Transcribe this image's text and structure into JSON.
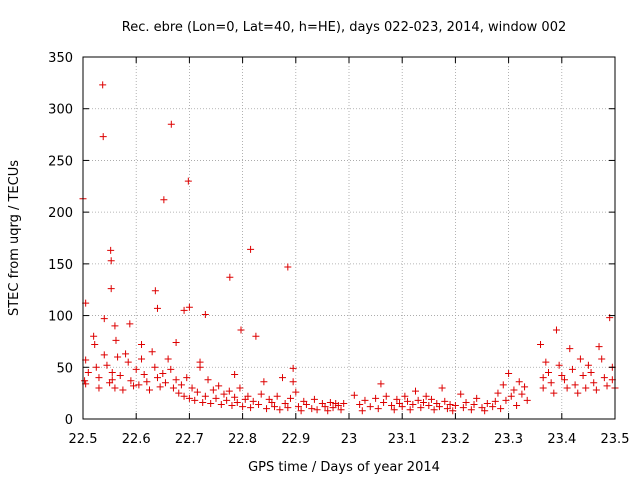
{
  "chart_data": {
    "type": "scatter",
    "title": "Rec. ebre (Lon=0, Lat=40, h=HE), days 022-023, 2014, window 002",
    "xlabel": "GPS time / Days of year 2014",
    "ylabel": "STEC from uqrg / TECUs",
    "xlim": [
      22.5,
      23.5
    ],
    "ylim": [
      0,
      350
    ],
    "xticks": [
      22.5,
      22.6,
      22.7,
      22.8,
      22.9,
      23.0,
      23.1,
      23.2,
      23.3,
      23.4,
      23.5
    ],
    "xtick_labels": [
      "22.5",
      "22.6",
      "22.7",
      "22.8",
      "22.9",
      "23",
      "23.1",
      "23.2",
      "23.3",
      "23.4",
      "23.5"
    ],
    "yticks": [
      0,
      50,
      100,
      150,
      200,
      250,
      300,
      350
    ],
    "ytick_labels": [
      "0",
      "50",
      "100",
      "150",
      "200",
      "250",
      "300",
      "350"
    ],
    "marker": "+",
    "color": "#dd0000",
    "grid": true,
    "series": [
      {
        "name": "STEC",
        "points": [
          [
            22.5,
            213
          ],
          [
            22.505,
            112
          ],
          [
            22.537,
            323
          ],
          [
            22.538,
            273
          ],
          [
            22.54,
            97
          ],
          [
            22.552,
            163
          ],
          [
            22.553,
            153
          ],
          [
            22.553,
            126
          ],
          [
            22.56,
            90
          ],
          [
            22.562,
            76
          ],
          [
            22.588,
            92
          ],
          [
            22.636,
            124
          ],
          [
            22.64,
            107
          ],
          [
            22.652,
            212
          ],
          [
            22.666,
            285
          ],
          [
            22.675,
            74
          ],
          [
            22.69,
            105
          ],
          [
            22.698,
            230
          ],
          [
            22.7,
            108
          ],
          [
            22.73,
            101
          ],
          [
            22.776,
            137
          ],
          [
            22.785,
            43
          ],
          [
            22.797,
            86
          ],
          [
            22.815,
            164
          ],
          [
            22.825,
            80
          ],
          [
            22.885,
            147
          ],
          [
            22.895,
            49
          ],
          [
            22.505,
            57
          ],
          [
            22.503,
            37
          ],
          [
            22.505,
            34
          ],
          [
            22.51,
            45
          ],
          [
            22.52,
            80
          ],
          [
            22.522,
            72
          ],
          [
            22.525,
            50
          ],
          [
            22.53,
            40
          ],
          [
            22.53,
            30
          ],
          [
            22.54,
            62
          ],
          [
            22.545,
            52
          ],
          [
            22.55,
            35
          ],
          [
            22.555,
            45
          ],
          [
            22.555,
            38
          ],
          [
            22.56,
            30
          ],
          [
            22.565,
            60
          ],
          [
            22.57,
            42
          ],
          [
            22.575,
            28
          ],
          [
            22.58,
            63
          ],
          [
            22.585,
            55
          ],
          [
            22.59,
            37
          ],
          [
            22.595,
            32
          ],
          [
            22.6,
            48
          ],
          [
            22.605,
            33
          ],
          [
            22.61,
            72
          ],
          [
            22.61,
            58
          ],
          [
            22.615,
            43
          ],
          [
            22.62,
            36
          ],
          [
            22.625,
            28
          ],
          [
            22.63,
            65
          ],
          [
            22.635,
            50
          ],
          [
            22.64,
            40
          ],
          [
            22.645,
            31
          ],
          [
            22.65,
            44
          ],
          [
            22.655,
            35
          ],
          [
            22.66,
            58
          ],
          [
            22.665,
            48
          ],
          [
            22.67,
            30
          ],
          [
            22.675,
            38
          ],
          [
            22.68,
            25
          ],
          [
            22.685,
            33
          ],
          [
            22.69,
            22
          ],
          [
            22.695,
            40
          ],
          [
            22.7,
            20
          ],
          [
            22.705,
            30
          ],
          [
            22.71,
            18
          ],
          [
            22.715,
            26
          ],
          [
            22.72,
            55
          ],
          [
            22.72,
            50
          ],
          [
            22.725,
            16
          ],
          [
            22.73,
            22
          ],
          [
            22.735,
            38
          ],
          [
            22.74,
            15
          ],
          [
            22.745,
            28
          ],
          [
            22.75,
            20
          ],
          [
            22.755,
            32
          ],
          [
            22.76,
            14
          ],
          [
            22.765,
            24
          ],
          [
            22.77,
            18
          ],
          [
            22.775,
            27
          ],
          [
            22.78,
            13
          ],
          [
            22.785,
            21
          ],
          [
            22.79,
            16
          ],
          [
            22.795,
            30
          ],
          [
            22.8,
            12
          ],
          [
            22.805,
            19
          ],
          [
            22.81,
            22
          ],
          [
            22.815,
            11
          ],
          [
            22.82,
            17
          ],
          [
            22.83,
            14
          ],
          [
            22.835,
            24
          ],
          [
            22.84,
            36
          ],
          [
            22.845,
            10
          ],
          [
            22.85,
            19
          ],
          [
            22.855,
            16
          ],
          [
            22.86,
            12
          ],
          [
            22.865,
            22
          ],
          [
            22.87,
            9
          ],
          [
            22.875,
            40
          ],
          [
            22.88,
            15
          ],
          [
            22.885,
            11
          ],
          [
            22.89,
            20
          ],
          [
            22.895,
            36
          ],
          [
            22.9,
            26
          ],
          [
            22.905,
            12
          ],
          [
            22.91,
            8
          ],
          [
            22.915,
            17
          ],
          [
            22.92,
            14
          ],
          [
            22.93,
            10
          ],
          [
            22.935,
            19
          ],
          [
            22.94,
            9
          ],
          [
            22.95,
            15
          ],
          [
            22.955,
            12
          ],
          [
            22.96,
            8
          ],
          [
            22.965,
            16
          ],
          [
            22.97,
            11
          ],
          [
            22.975,
            15
          ],
          [
            22.98,
            13
          ],
          [
            22.985,
            9
          ],
          [
            22.99,
            15
          ],
          [
            23.01,
            23
          ],
          [
            23.02,
            14
          ],
          [
            23.025,
            8
          ],
          [
            23.03,
            18
          ],
          [
            23.04,
            12
          ],
          [
            23.05,
            20
          ],
          [
            23.055,
            10
          ],
          [
            23.06,
            34
          ],
          [
            23.065,
            16
          ],
          [
            23.07,
            22
          ],
          [
            23.08,
            13
          ],
          [
            23.085,
            9
          ],
          [
            23.09,
            19
          ],
          [
            23.095,
            15
          ],
          [
            23.1,
            12
          ],
          [
            23.105,
            22
          ],
          [
            23.11,
            17
          ],
          [
            23.115,
            9
          ],
          [
            23.12,
            14
          ],
          [
            23.125,
            27
          ],
          [
            23.13,
            18
          ],
          [
            23.135,
            11
          ],
          [
            23.14,
            16
          ],
          [
            23.145,
            22
          ],
          [
            23.15,
            13
          ],
          [
            23.155,
            19
          ],
          [
            23.16,
            9
          ],
          [
            23.165,
            15
          ],
          [
            23.17,
            12
          ],
          [
            23.175,
            30
          ],
          [
            23.18,
            17
          ],
          [
            23.185,
            10
          ],
          [
            23.19,
            14
          ],
          [
            23.195,
            8
          ],
          [
            23.2,
            13
          ],
          [
            23.21,
            24
          ],
          [
            23.215,
            11
          ],
          [
            23.22,
            16
          ],
          [
            23.23,
            9
          ],
          [
            23.235,
            14
          ],
          [
            23.24,
            20
          ],
          [
            23.25,
            11
          ],
          [
            23.255,
            8
          ],
          [
            23.26,
            15
          ],
          [
            23.27,
            12
          ],
          [
            23.275,
            17
          ],
          [
            23.28,
            25
          ],
          [
            23.285,
            10
          ],
          [
            23.29,
            33
          ],
          [
            23.295,
            18
          ],
          [
            23.3,
            44
          ],
          [
            23.305,
            22
          ],
          [
            23.31,
            28
          ],
          [
            23.315,
            13
          ],
          [
            23.32,
            36
          ],
          [
            23.325,
            24
          ],
          [
            23.33,
            31
          ],
          [
            23.335,
            18
          ],
          [
            23.36,
            72
          ],
          [
            23.365,
            40
          ],
          [
            23.365,
            30
          ],
          [
            23.37,
            55
          ],
          [
            23.375,
            45
          ],
          [
            23.38,
            35
          ],
          [
            23.385,
            25
          ],
          [
            23.39,
            86
          ],
          [
            23.395,
            52
          ],
          [
            23.4,
            42
          ],
          [
            23.405,
            38
          ],
          [
            23.41,
            30
          ],
          [
            23.415,
            68
          ],
          [
            23.42,
            48
          ],
          [
            23.425,
            33
          ],
          [
            23.43,
            25
          ],
          [
            23.435,
            58
          ],
          [
            23.44,
            42
          ],
          [
            23.445,
            30
          ],
          [
            23.45,
            52
          ],
          [
            23.455,
            45
          ],
          [
            23.46,
            35
          ],
          [
            23.465,
            28
          ],
          [
            23.47,
            70
          ],
          [
            23.475,
            58
          ],
          [
            23.48,
            40
          ],
          [
            23.485,
            32
          ],
          [
            23.49,
            98
          ],
          [
            23.495,
            50
          ],
          [
            23.495,
            38
          ],
          [
            23.5,
            30
          ]
        ]
      }
    ]
  }
}
